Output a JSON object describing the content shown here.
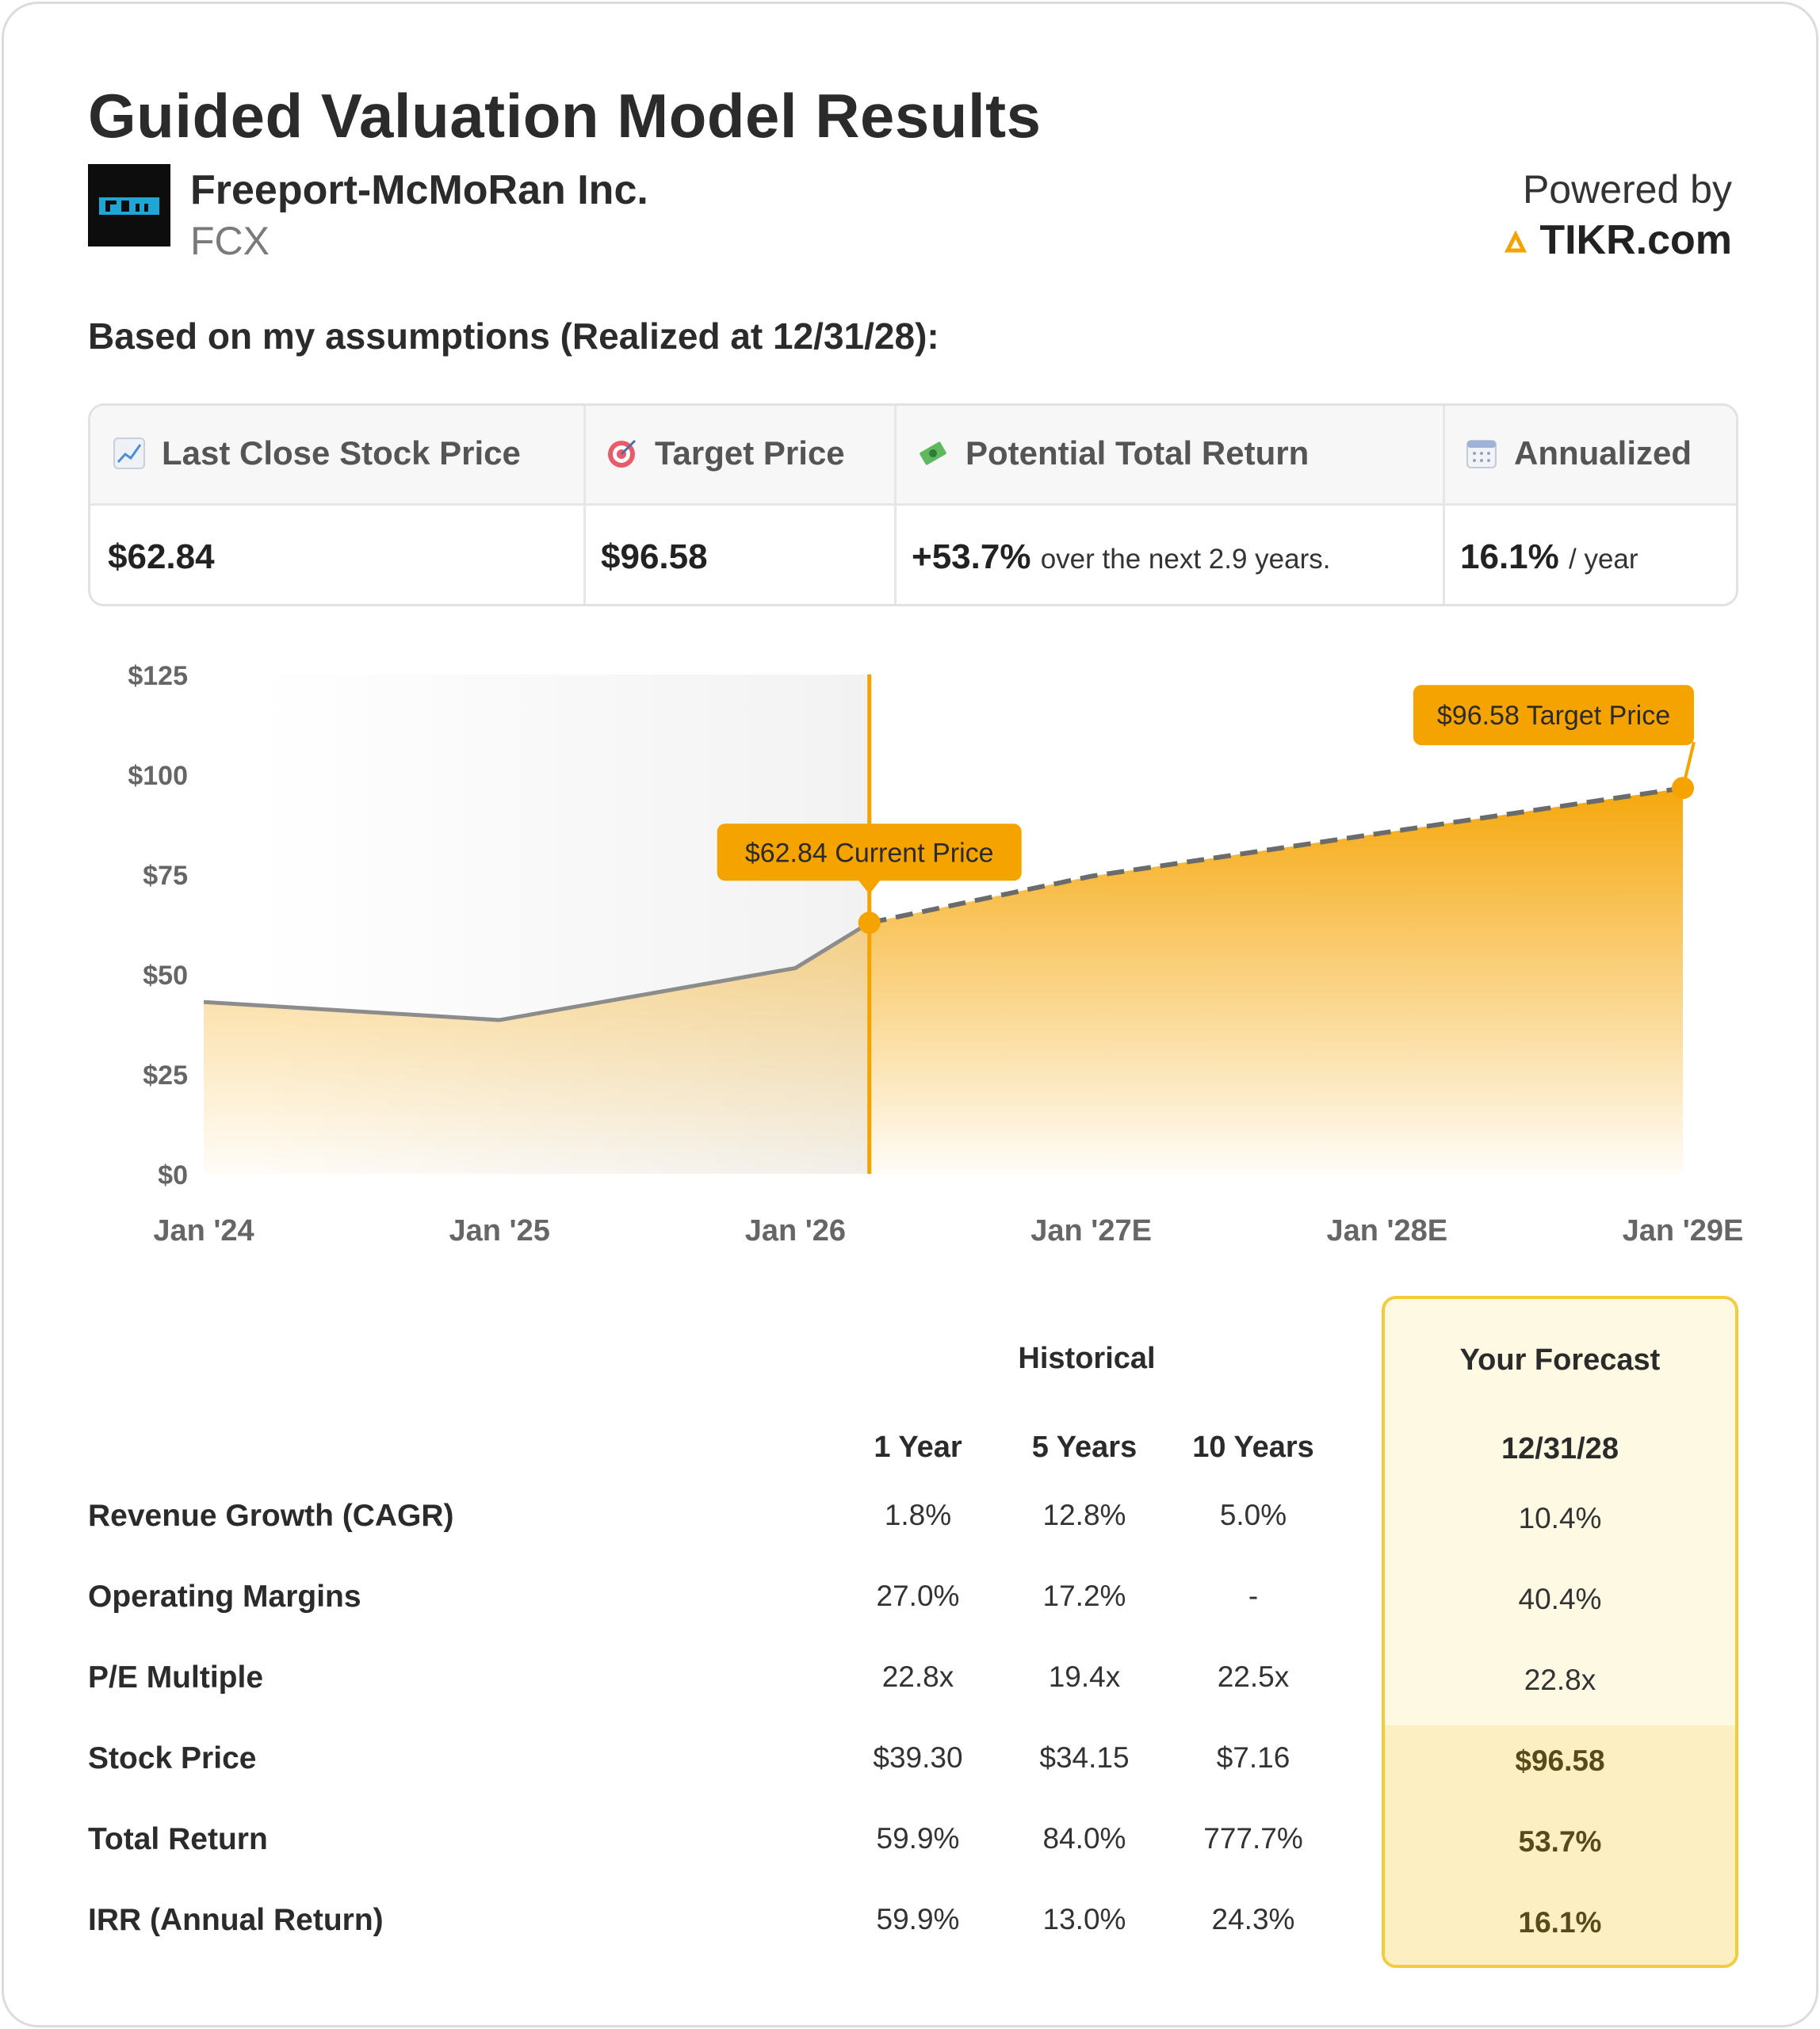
{
  "header": {
    "title": "Guided Valuation Model Results",
    "company_name": "Freeport-McMoRan Inc.",
    "ticker": "FCX",
    "powered_by": "Powered by",
    "brand": "TIKR.com"
  },
  "subtitle": "Based on my assumptions (Realized at 12/31/28):",
  "summary": {
    "last_close_label": "Last Close Stock Price",
    "last_close_value": "$62.84",
    "target_label": "Target Price",
    "target_value": "$96.58",
    "return_label": "Potential Total Return",
    "return_value": "+53.7%",
    "return_suffix": "over the next 2.9 years.",
    "annualized_label": "Annualized",
    "annualized_value": "16.1%",
    "annualized_suffix": "/ year"
  },
  "colors": {
    "accent": "#f5a300",
    "historical_line": "#8c8c8c",
    "forecast_dash": "#6b6b6b",
    "forecast_border": "#f2cc3d"
  },
  "chart_data": {
    "type": "area",
    "y_ticks": [
      "$0",
      "$25",
      "$50",
      "$75",
      "$100",
      "$125"
    ],
    "ylim": [
      0,
      125
    ],
    "x_ticks": [
      "Jan '24",
      "Jan '25",
      "Jan '26",
      "Jan '27E",
      "Jan '28E",
      "Jan '29E"
    ],
    "historical": [
      {
        "x": 2024.0,
        "y": 43.0
      },
      {
        "x": 2025.0,
        "y": 38.5
      },
      {
        "x": 2026.0,
        "y": 51.5
      },
      {
        "x": 2026.25,
        "y": 62.84
      }
    ],
    "forecast": [
      {
        "x": 2026.25,
        "y": 62.84
      },
      {
        "x": 2027.0,
        "y": 74.5
      },
      {
        "x": 2028.0,
        "y": 85.5
      },
      {
        "x": 2029.0,
        "y": 96.58
      }
    ],
    "current_label": "$62.84 Current Price",
    "target_label": "$96.58 Target Price"
  },
  "table": {
    "historical_header": "Historical",
    "forecast_header": "Your Forecast",
    "forecast_date": "12/31/28",
    "col_1y": "1 Year",
    "col_5y": "5 Years",
    "col_10y": "10 Years",
    "rows": [
      {
        "label": "Revenue Growth (CAGR)",
        "y1": "1.8%",
        "y5": "12.8%",
        "y10": "5.0%",
        "forecast": "10.4%"
      },
      {
        "label": "Operating Margins",
        "y1": "27.0%",
        "y5": "17.2%",
        "y10": "-",
        "forecast": "40.4%"
      },
      {
        "label": "P/E Multiple",
        "y1": "22.8x",
        "y5": "19.4x",
        "y10": "22.5x",
        "forecast": "22.8x"
      },
      {
        "label": "Stock Price",
        "y1": "$39.30",
        "y5": "$34.15",
        "y10": "$7.16",
        "forecast": "$96.58"
      },
      {
        "label": "Total Return",
        "y1": "59.9%",
        "y5": "84.0%",
        "y10": "777.7%",
        "forecast": "53.7%"
      },
      {
        "label": "IRR (Annual Return)",
        "y1": "59.9%",
        "y5": "13.0%",
        "y10": "24.3%",
        "forecast": "16.1%"
      }
    ]
  }
}
